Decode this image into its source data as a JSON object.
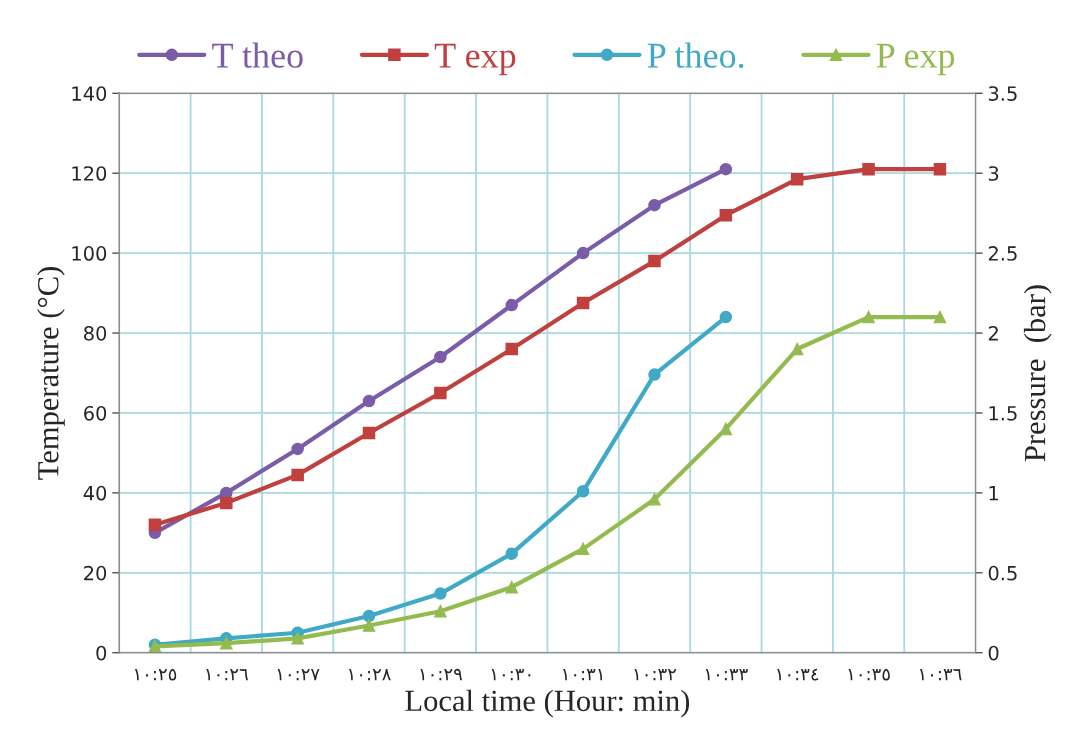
{
  "chart_data": {
    "type": "line",
    "xlabel": "Local time (Hour: min)",
    "ylabel": "Temperature (°C)",
    "y2label": "Pressure  (bar)",
    "categories": [
      "١٠:٢٥",
      "١٠:٢٦",
      "١٠:٢٧",
      "١٠:٢٨",
      "١٠:٢٩",
      "١٠:٣٠",
      "١٠:٣١",
      "١٠:٣٢",
      "١٠:٣٣",
      "١٠:٣٤",
      "١٠:٣٥",
      "١٠:٣٦"
    ],
    "series": [
      {
        "name": "T theo",
        "color": "#7a5ca8",
        "marker": "circle",
        "values": [
          30,
          40,
          51,
          63,
          74,
          87,
          100,
          112,
          121,
          null,
          null,
          null
        ]
      },
      {
        "name": "T exp",
        "color": "#c0403e",
        "marker": "square",
        "values": [
          32,
          37.5,
          44.5,
          55,
          65,
          76,
          87.5,
          98,
          109.5,
          118.5,
          121,
          121
        ]
      },
      {
        "name": "P theo.",
        "color": "#3fa9c6",
        "marker": "circle",
        "axis": "y2",
        "values": [
          0.05,
          0.09,
          0.125,
          0.23,
          0.37,
          0.62,
          1.01,
          1.74,
          2.1,
          null,
          null,
          null
        ]
      },
      {
        "name": "P exp",
        "color": "#93bb4f",
        "marker": "triangle",
        "axis": "y2",
        "values": [
          0.04,
          0.06,
          0.09,
          0.17,
          0.26,
          0.41,
          0.65,
          0.96,
          1.4,
          1.9,
          2.1,
          2.1
        ]
      }
    ],
    "ylim": [
      0,
      140
    ],
    "yticks": [
      0,
      20,
      40,
      60,
      80,
      100,
      120,
      140
    ],
    "y2lim": [
      0,
      3.5
    ],
    "y2ticks": [
      0,
      0.5,
      1,
      1.5,
      2,
      2.5,
      3,
      3.5
    ],
    "grid": true,
    "legend": "top",
    "line_style": "solid"
  }
}
